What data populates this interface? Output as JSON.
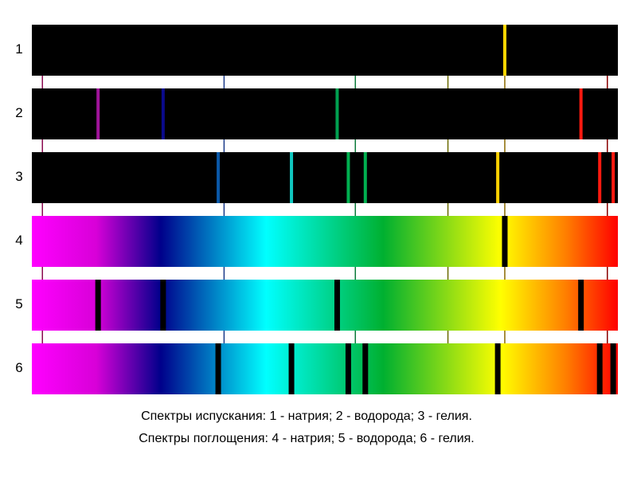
{
  "rows": [
    {
      "label": "1",
      "kind": "emission",
      "element": "натрий",
      "lines": [
        {
          "pos": 0.807,
          "color": "#ffd700"
        }
      ]
    },
    {
      "label": "2",
      "kind": "emission",
      "element": "водород",
      "lines": [
        {
          "pos": 0.113,
          "color": "#a0149a"
        },
        {
          "pos": 0.224,
          "color": "#0a0a8c"
        },
        {
          "pos": 0.521,
          "color": "#00a050"
        },
        {
          "pos": 0.937,
          "color": "#ff1a10"
        }
      ]
    },
    {
      "label": "3",
      "kind": "emission",
      "element": "гелий",
      "lines": [
        {
          "pos": 0.318,
          "color": "#0a58a8"
        },
        {
          "pos": 0.443,
          "color": "#10c8c0"
        },
        {
          "pos": 0.54,
          "color": "#00b050"
        },
        {
          "pos": 0.569,
          "color": "#00b050"
        },
        {
          "pos": 0.795,
          "color": "#ffd000"
        },
        {
          "pos": 0.969,
          "color": "#ff1a10"
        },
        {
          "pos": 0.992,
          "color": "#ff1a10"
        }
      ]
    },
    {
      "label": "4",
      "kind": "absorption",
      "element": "натрий",
      "lines": [
        {
          "pos": 0.807
        }
      ]
    },
    {
      "label": "5",
      "kind": "absorption",
      "element": "водород",
      "lines": [
        {
          "pos": 0.113
        },
        {
          "pos": 0.224
        },
        {
          "pos": 0.521
        },
        {
          "pos": 0.937
        }
      ]
    },
    {
      "label": "6",
      "kind": "absorption",
      "element": "гелий",
      "lines": [
        {
          "pos": 0.318
        },
        {
          "pos": 0.443
        },
        {
          "pos": 0.54
        },
        {
          "pos": 0.569
        },
        {
          "pos": 0.795
        },
        {
          "pos": 0.969
        },
        {
          "pos": 0.992
        }
      ]
    }
  ],
  "gridlines": [
    {
      "pos": 0.018,
      "color": "#8b0a50"
    },
    {
      "pos": 0.328,
      "color": "#1a3a8a"
    },
    {
      "pos": 0.552,
      "color": "#0a7a3a"
    },
    {
      "pos": 0.71,
      "color": "#6a6a00"
    },
    {
      "pos": 0.807,
      "color": "#8a6a00"
    },
    {
      "pos": 0.982,
      "color": "#8b0000"
    }
  ],
  "spectrum_gradient": [
    {
      "pos": 0.0,
      "color": "#ff00ff"
    },
    {
      "pos": 0.11,
      "color": "#d800d8"
    },
    {
      "pos": 0.22,
      "color": "#00008b"
    },
    {
      "pos": 0.4,
      "color": "#00ffff"
    },
    {
      "pos": 0.6,
      "color": "#00b030"
    },
    {
      "pos": 0.8,
      "color": "#ffff00"
    },
    {
      "pos": 0.91,
      "color": "#ff8000"
    },
    {
      "pos": 1.0,
      "color": "#ff0000"
    }
  ],
  "captions": {
    "emission": "Спектры испускания: 1 - натрия; 2 - водорода; 3 - гелия.",
    "absorption": "Спектры поглощения: 4 - натрия; 5 - водорода; 6 - гелия."
  }
}
